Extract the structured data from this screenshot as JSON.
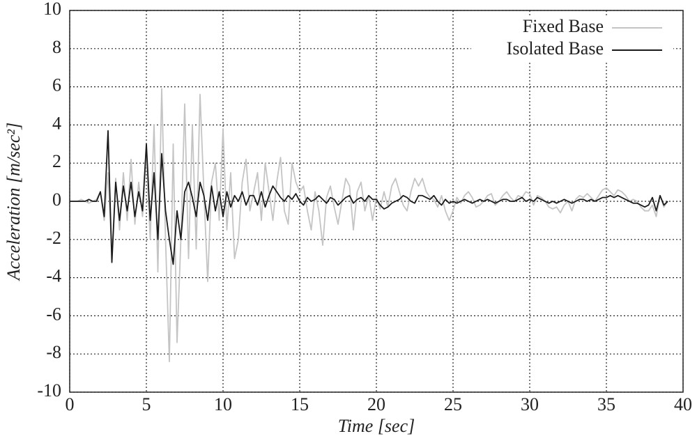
{
  "chart_data": {
    "type": "line",
    "xlabel": "Time [sec]",
    "ylabel": "Acceleration [m/sec²]",
    "xlim": [
      0,
      40
    ],
    "ylim": [
      -10,
      10
    ],
    "xticks": [
      0,
      5,
      10,
      15,
      20,
      25,
      30,
      35,
      40
    ],
    "yticks": [
      -10,
      -8,
      -6,
      -4,
      -2,
      0,
      2,
      4,
      6,
      8,
      10
    ],
    "grid": true,
    "legend": "upper right",
    "x": [
      0,
      0.25,
      0.5,
      0.75,
      1,
      1.25,
      1.5,
      1.75,
      2,
      2.25,
      2.5,
      2.75,
      3,
      3.25,
      3.5,
      3.75,
      4,
      4.25,
      4.5,
      4.75,
      5,
      5.25,
      5.5,
      5.75,
      6,
      6.25,
      6.5,
      6.75,
      7,
      7.25,
      7.5,
      7.75,
      8,
      8.25,
      8.5,
      8.75,
      9,
      9.25,
      9.5,
      9.75,
      10,
      10.25,
      10.5,
      10.75,
      11,
      11.25,
      11.5,
      11.75,
      12,
      12.25,
      12.5,
      12.75,
      13,
      13.25,
      13.5,
      13.75,
      14,
      14.25,
      14.5,
      14.75,
      15,
      15.25,
      15.5,
      15.75,
      16,
      16.25,
      16.5,
      16.75,
      17,
      17.25,
      17.5,
      17.75,
      18,
      18.25,
      18.5,
      18.75,
      19,
      19.25,
      19.5,
      19.75,
      20,
      20.25,
      20.5,
      20.75,
      21,
      21.25,
      21.5,
      21.75,
      22,
      22.25,
      22.5,
      22.75,
      23,
      23.25,
      23.5,
      23.75,
      24,
      24.25,
      24.5,
      24.75,
      25,
      25.25,
      25.5,
      25.75,
      26,
      26.25,
      26.5,
      26.75,
      27,
      27.25,
      27.5,
      27.75,
      28,
      28.25,
      28.5,
      28.75,
      29,
      29.25,
      29.5,
      29.75,
      30,
      30.25,
      30.5,
      30.75,
      31,
      31.25,
      31.5,
      31.75,
      32,
      32.25,
      32.5,
      32.75,
      33,
      33.25,
      33.5,
      33.75,
      34,
      34.25,
      34.5,
      34.75,
      35,
      35.25,
      35.5,
      35.75,
      36,
      36.25,
      36.5,
      36.75,
      37,
      37.25,
      37.5,
      37.75,
      38,
      38.25,
      38.5,
      38.75,
      39
    ],
    "series": [
      {
        "name": "Fixed Base",
        "color": "#c4c4c4",
        "values": [
          0,
          0,
          0,
          0.1,
          0,
          -0.1,
          0,
          0.1,
          0.5,
          -1,
          1.5,
          -2.8,
          1.2,
          -1.5,
          1.5,
          -1,
          2.2,
          -1.2,
          1,
          -0.8,
          2.5,
          -2,
          4,
          -3.7,
          5.9,
          -2,
          -8.4,
          3,
          -7.4,
          -2,
          5.1,
          -3,
          4,
          -2.5,
          5.6,
          0.5,
          -4.2,
          1,
          2,
          -1,
          3.8,
          -1.5,
          1.5,
          -3,
          -2,
          1,
          2.2,
          -0.5,
          0.5,
          1.5,
          -1,
          2,
          0.5,
          -1,
          1,
          2.3,
          -0.5,
          -1.2,
          2,
          1,
          0.5,
          0.8,
          -0.5,
          -1.5,
          0.5,
          -0.5,
          -2.3,
          0.2,
          0.8,
          -0.3,
          -1.2,
          0,
          1.2,
          0.8,
          -1.5,
          0.5,
          1,
          -0.5,
          0.3,
          -1,
          0.2,
          -0.4,
          0.5,
          -0.3,
          0.8,
          1.2,
          0.5,
          -0.2,
          -0.5,
          0.5,
          1.2,
          0.8,
          1.2,
          0.5,
          0.2,
          0.1,
          -0.3,
          0.3,
          -0.5,
          -1,
          -0.5,
          0.2,
          -0.1,
          0.3,
          0.5,
          0.2,
          -0.3,
          -0.2,
          0,
          0.3,
          0.4,
          -0.2,
          0,
          0.3,
          0.5,
          0.2,
          0,
          0.3,
          0.2,
          0.5,
          0.4,
          -0.2,
          0.3,
          0.2,
          0,
          -0.3,
          -0.4,
          -0.3,
          -0.6,
          -0.2,
          0,
          -0.5,
          0.1,
          0.3,
          0.2,
          0.4,
          0.2,
          0,
          0.3,
          0.6,
          0.7,
          0.5,
          0.3,
          0.6,
          0.5,
          0.3,
          0,
          0.1,
          0,
          -0.3,
          -0.5,
          -0.5,
          -0.2,
          -0.8,
          0.3,
          -0.3,
          0
        ]
      },
      {
        "name": "Isolated Base",
        "color": "#1a1a1a",
        "values": [
          0,
          0,
          0,
          0,
          0,
          0.1,
          0,
          0,
          0.5,
          -0.8,
          3.7,
          -3.2,
          1,
          -1,
          0.8,
          -0.5,
          1,
          -0.8,
          0.5,
          -0.5,
          3,
          -1,
          1.5,
          -2,
          2.5,
          -0.5,
          -2,
          -3.3,
          -0.5,
          -2,
          0.5,
          1,
          0.2,
          -0.8,
          1,
          0.3,
          -1,
          0.8,
          -0.5,
          0.5,
          -0.8,
          0.5,
          -0.3,
          0.3,
          0,
          0.5,
          -0.2,
          0.3,
          0.3,
          -0.2,
          0.5,
          -0.3,
          0.3,
          0.8,
          0.5,
          0.2,
          0,
          0.3,
          0.1,
          0.4,
          0,
          -0.2,
          0.2,
          0,
          0.1,
          0.3,
          0.1,
          -0.1,
          0.2,
          0.1,
          -0.2,
          0,
          0.2,
          0.3,
          -0.1,
          0.1,
          0.2,
          0,
          0.3,
          0.1,
          0.1,
          -0.2,
          -0.4,
          -0.3,
          -0.1,
          0,
          0.1,
          0.3,
          0.2,
          0,
          -0.1,
          0.3,
          0.3,
          0.2,
          0.1,
          0.3,
          0,
          -0.2,
          0.1,
          -0.1,
          0,
          -0.1,
          0,
          0.1,
          0,
          -0.1,
          0,
          0.1,
          0,
          0.1,
          0,
          -0.1,
          0,
          0.1,
          0.1,
          0,
          0,
          0.1,
          0.2,
          0,
          0.1,
          0,
          0.2,
          0.1,
          0,
          -0.1,
          0,
          -0.1,
          0,
          0.1,
          0,
          -0.1,
          0,
          0.1,
          0.1,
          0,
          0.1,
          0,
          0.1,
          0.2,
          0.2,
          0.3,
          0.2,
          0.3,
          0.2,
          0.1,
          0,
          -0.1,
          -0.1,
          -0.2,
          -0.3,
          -0.2,
          0.2,
          -0.5,
          0.3,
          -0.2,
          0
        ]
      }
    ]
  }
}
